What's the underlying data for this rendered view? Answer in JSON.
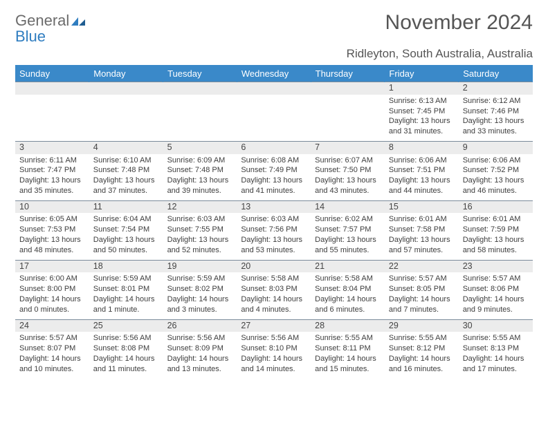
{
  "brand": {
    "wordA": "General",
    "wordB": "Blue",
    "iconColor": "#2f7dc0"
  },
  "title": "November 2024",
  "location": "Ridleyton, South Australia, Australia",
  "colors": {
    "headerBg": "#3a89c9",
    "headerText": "#ffffff",
    "bandBg": "#ececec",
    "bandBorder": "#7a8a9a",
    "text": "#3d3d3d",
    "logoGray": "#6b6b6b",
    "logoBlue": "#2f7dc0"
  },
  "weekdays": [
    "Sunday",
    "Monday",
    "Tuesday",
    "Wednesday",
    "Thursday",
    "Friday",
    "Saturday"
  ],
  "weeks": [
    {
      "dates": [
        "",
        "",
        "",
        "",
        "",
        "1",
        "2"
      ],
      "cells": [
        null,
        null,
        null,
        null,
        null,
        {
          "sunrise": "Sunrise: 6:13 AM",
          "sunset": "Sunset: 7:45 PM",
          "daylight": "Daylight: 13 hours and 31 minutes."
        },
        {
          "sunrise": "Sunrise: 6:12 AM",
          "sunset": "Sunset: 7:46 PM",
          "daylight": "Daylight: 13 hours and 33 minutes."
        }
      ]
    },
    {
      "dates": [
        "3",
        "4",
        "5",
        "6",
        "7",
        "8",
        "9"
      ],
      "cells": [
        {
          "sunrise": "Sunrise: 6:11 AM",
          "sunset": "Sunset: 7:47 PM",
          "daylight": "Daylight: 13 hours and 35 minutes."
        },
        {
          "sunrise": "Sunrise: 6:10 AM",
          "sunset": "Sunset: 7:48 PM",
          "daylight": "Daylight: 13 hours and 37 minutes."
        },
        {
          "sunrise": "Sunrise: 6:09 AM",
          "sunset": "Sunset: 7:48 PM",
          "daylight": "Daylight: 13 hours and 39 minutes."
        },
        {
          "sunrise": "Sunrise: 6:08 AM",
          "sunset": "Sunset: 7:49 PM",
          "daylight": "Daylight: 13 hours and 41 minutes."
        },
        {
          "sunrise": "Sunrise: 6:07 AM",
          "sunset": "Sunset: 7:50 PM",
          "daylight": "Daylight: 13 hours and 43 minutes."
        },
        {
          "sunrise": "Sunrise: 6:06 AM",
          "sunset": "Sunset: 7:51 PM",
          "daylight": "Daylight: 13 hours and 44 minutes."
        },
        {
          "sunrise": "Sunrise: 6:06 AM",
          "sunset": "Sunset: 7:52 PM",
          "daylight": "Daylight: 13 hours and 46 minutes."
        }
      ]
    },
    {
      "dates": [
        "10",
        "11",
        "12",
        "13",
        "14",
        "15",
        "16"
      ],
      "cells": [
        {
          "sunrise": "Sunrise: 6:05 AM",
          "sunset": "Sunset: 7:53 PM",
          "daylight": "Daylight: 13 hours and 48 minutes."
        },
        {
          "sunrise": "Sunrise: 6:04 AM",
          "sunset": "Sunset: 7:54 PM",
          "daylight": "Daylight: 13 hours and 50 minutes."
        },
        {
          "sunrise": "Sunrise: 6:03 AM",
          "sunset": "Sunset: 7:55 PM",
          "daylight": "Daylight: 13 hours and 52 minutes."
        },
        {
          "sunrise": "Sunrise: 6:03 AM",
          "sunset": "Sunset: 7:56 PM",
          "daylight": "Daylight: 13 hours and 53 minutes."
        },
        {
          "sunrise": "Sunrise: 6:02 AM",
          "sunset": "Sunset: 7:57 PM",
          "daylight": "Daylight: 13 hours and 55 minutes."
        },
        {
          "sunrise": "Sunrise: 6:01 AM",
          "sunset": "Sunset: 7:58 PM",
          "daylight": "Daylight: 13 hours and 57 minutes."
        },
        {
          "sunrise": "Sunrise: 6:01 AM",
          "sunset": "Sunset: 7:59 PM",
          "daylight": "Daylight: 13 hours and 58 minutes."
        }
      ]
    },
    {
      "dates": [
        "17",
        "18",
        "19",
        "20",
        "21",
        "22",
        "23"
      ],
      "cells": [
        {
          "sunrise": "Sunrise: 6:00 AM",
          "sunset": "Sunset: 8:00 PM",
          "daylight": "Daylight: 14 hours and 0 minutes."
        },
        {
          "sunrise": "Sunrise: 5:59 AM",
          "sunset": "Sunset: 8:01 PM",
          "daylight": "Daylight: 14 hours and 1 minute."
        },
        {
          "sunrise": "Sunrise: 5:59 AM",
          "sunset": "Sunset: 8:02 PM",
          "daylight": "Daylight: 14 hours and 3 minutes."
        },
        {
          "sunrise": "Sunrise: 5:58 AM",
          "sunset": "Sunset: 8:03 PM",
          "daylight": "Daylight: 14 hours and 4 minutes."
        },
        {
          "sunrise": "Sunrise: 5:58 AM",
          "sunset": "Sunset: 8:04 PM",
          "daylight": "Daylight: 14 hours and 6 minutes."
        },
        {
          "sunrise": "Sunrise: 5:57 AM",
          "sunset": "Sunset: 8:05 PM",
          "daylight": "Daylight: 14 hours and 7 minutes."
        },
        {
          "sunrise": "Sunrise: 5:57 AM",
          "sunset": "Sunset: 8:06 PM",
          "daylight": "Daylight: 14 hours and 9 minutes."
        }
      ]
    },
    {
      "dates": [
        "24",
        "25",
        "26",
        "27",
        "28",
        "29",
        "30"
      ],
      "cells": [
        {
          "sunrise": "Sunrise: 5:57 AM",
          "sunset": "Sunset: 8:07 PM",
          "daylight": "Daylight: 14 hours and 10 minutes."
        },
        {
          "sunrise": "Sunrise: 5:56 AM",
          "sunset": "Sunset: 8:08 PM",
          "daylight": "Daylight: 14 hours and 11 minutes."
        },
        {
          "sunrise": "Sunrise: 5:56 AM",
          "sunset": "Sunset: 8:09 PM",
          "daylight": "Daylight: 14 hours and 13 minutes."
        },
        {
          "sunrise": "Sunrise: 5:56 AM",
          "sunset": "Sunset: 8:10 PM",
          "daylight": "Daylight: 14 hours and 14 minutes."
        },
        {
          "sunrise": "Sunrise: 5:55 AM",
          "sunset": "Sunset: 8:11 PM",
          "daylight": "Daylight: 14 hours and 15 minutes."
        },
        {
          "sunrise": "Sunrise: 5:55 AM",
          "sunset": "Sunset: 8:12 PM",
          "daylight": "Daylight: 14 hours and 16 minutes."
        },
        {
          "sunrise": "Sunrise: 5:55 AM",
          "sunset": "Sunset: 8:13 PM",
          "daylight": "Daylight: 14 hours and 17 minutes."
        }
      ]
    }
  ]
}
